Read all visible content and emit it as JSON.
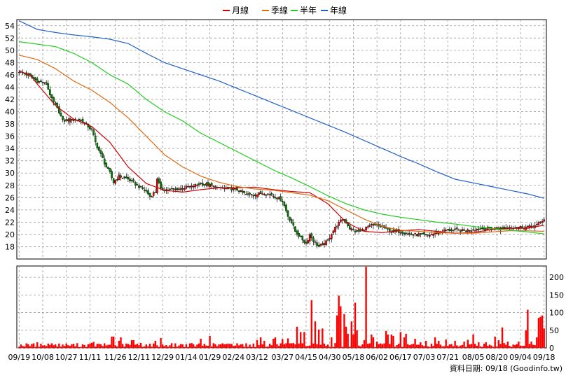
{
  "chart_data": [
    {
      "type": "candlestick",
      "panel": "price",
      "legend": [
        {
          "label": "月線",
          "color": "#cc0000"
        },
        {
          "label": "季線",
          "color": "#e06a10"
        },
        {
          "label": "半年",
          "color": "#22cc22"
        },
        {
          "label": "年線",
          "color": "#1f5fc8"
        }
      ],
      "y_ticks": [
        18,
        20,
        22,
        24,
        26,
        28,
        30,
        32,
        34,
        36,
        38,
        40,
        42,
        44,
        46,
        48,
        50,
        52,
        54
      ],
      "ylim": [
        16,
        55
      ],
      "grid": true,
      "candle_colors": {
        "up": "#ff0000",
        "down": "#008800"
      },
      "series_anchors": {
        "月線": [
          [
            0,
            46.6
          ],
          [
            6,
            46.0
          ],
          [
            10,
            44.5
          ],
          [
            20,
            41.0
          ],
          [
            30,
            38.8
          ],
          [
            40,
            37.6
          ],
          [
            50,
            35.0
          ],
          [
            60,
            31.0
          ],
          [
            70,
            28.3
          ],
          [
            80,
            27.2
          ],
          [
            90,
            26.9
          ],
          [
            100,
            27.3
          ],
          [
            110,
            27.6
          ],
          [
            120,
            27.6
          ],
          [
            130,
            27.7
          ],
          [
            140,
            27.3
          ],
          [
            150,
            27.0
          ],
          [
            160,
            26.8
          ],
          [
            170,
            25.0
          ],
          [
            180,
            22.0
          ],
          [
            190,
            20.5
          ],
          [
            200,
            20.3
          ],
          [
            210,
            20.6
          ],
          [
            220,
            20.8
          ],
          [
            230,
            20.5
          ],
          [
            240,
            20.2
          ],
          [
            250,
            20.3
          ],
          [
            260,
            20.8
          ],
          [
            270,
            21.0
          ],
          [
            280,
            21.0
          ],
          [
            289,
            21.5
          ]
        ],
        "季線": [
          [
            0,
            49.2
          ],
          [
            10,
            48.5
          ],
          [
            20,
            47.0
          ],
          [
            30,
            45.0
          ],
          [
            40,
            43.5
          ],
          [
            50,
            41.5
          ],
          [
            60,
            39.0
          ],
          [
            70,
            36.0
          ],
          [
            80,
            33.0
          ],
          [
            90,
            31.0
          ],
          [
            100,
            29.5
          ],
          [
            110,
            28.5
          ],
          [
            120,
            27.8
          ],
          [
            130,
            27.4
          ],
          [
            140,
            27.2
          ],
          [
            150,
            26.8
          ],
          [
            160,
            26.4
          ],
          [
            170,
            25.5
          ],
          [
            180,
            24.0
          ],
          [
            190,
            22.5
          ],
          [
            200,
            21.3
          ],
          [
            210,
            20.7
          ],
          [
            220,
            20.5
          ],
          [
            230,
            20.3
          ],
          [
            240,
            20.2
          ],
          [
            250,
            20.2
          ],
          [
            260,
            20.4
          ],
          [
            270,
            20.6
          ],
          [
            280,
            20.6
          ],
          [
            289,
            20.5
          ]
        ],
        "半年": [
          [
            0,
            51.4
          ],
          [
            10,
            51.0
          ],
          [
            20,
            50.6
          ],
          [
            30,
            49.5
          ],
          [
            40,
            48.0
          ],
          [
            50,
            46.0
          ],
          [
            60,
            44.5
          ],
          [
            70,
            42.0
          ],
          [
            80,
            40.0
          ],
          [
            90,
            38.5
          ],
          [
            100,
            36.5
          ],
          [
            110,
            35.0
          ],
          [
            120,
            33.5
          ],
          [
            130,
            32.0
          ],
          [
            140,
            30.5
          ],
          [
            150,
            29.2
          ],
          [
            160,
            27.8
          ],
          [
            170,
            26.3
          ],
          [
            180,
            25.0
          ],
          [
            190,
            24.0
          ],
          [
            200,
            23.3
          ],
          [
            210,
            22.8
          ],
          [
            220,
            22.4
          ],
          [
            230,
            22.0
          ],
          [
            240,
            21.7
          ],
          [
            250,
            21.3
          ],
          [
            260,
            21.0
          ],
          [
            270,
            20.7
          ],
          [
            280,
            20.4
          ],
          [
            289,
            20.1
          ]
        ],
        "年線": [
          [
            0,
            54.8
          ],
          [
            10,
            53.4
          ],
          [
            20,
            52.9
          ],
          [
            30,
            52.5
          ],
          [
            40,
            52.2
          ],
          [
            50,
            51.8
          ],
          [
            60,
            51.1
          ],
          [
            70,
            49.5
          ],
          [
            80,
            48.0
          ],
          [
            90,
            47.0
          ],
          [
            100,
            46.0
          ],
          [
            110,
            45.0
          ],
          [
            120,
            43.8
          ],
          [
            130,
            42.6
          ],
          [
            140,
            41.4
          ],
          [
            150,
            40.2
          ],
          [
            160,
            39.0
          ],
          [
            170,
            37.8
          ],
          [
            180,
            36.6
          ],
          [
            190,
            35.3
          ],
          [
            200,
            34.0
          ],
          [
            210,
            32.7
          ],
          [
            220,
            31.5
          ],
          [
            230,
            30.2
          ],
          [
            240,
            29.0
          ],
          [
            250,
            28.4
          ],
          [
            260,
            27.8
          ],
          [
            270,
            27.2
          ],
          [
            280,
            26.6
          ],
          [
            289,
            25.9
          ]
        ]
      },
      "close_anchors": [
        [
          0,
          46.5
        ],
        [
          5,
          46.0
        ],
        [
          10,
          45.0
        ],
        [
          15,
          44.5
        ],
        [
          18,
          42.0
        ],
        [
          22,
          40.0
        ],
        [
          24,
          38.5
        ],
        [
          30,
          38.8
        ],
        [
          35,
          38.5
        ],
        [
          40,
          37.0
        ],
        [
          42,
          35.0
        ],
        [
          45,
          33.0
        ],
        [
          48,
          31.0
        ],
        [
          50,
          30.0
        ],
        [
          52,
          28.5
        ],
        [
          55,
          29.5
        ],
        [
          60,
          29.0
        ],
        [
          65,
          28.0
        ],
        [
          70,
          27.0
        ],
        [
          72,
          26.2
        ],
        [
          75,
          27.0
        ],
        [
          76,
          29.2
        ],
        [
          78,
          27.3
        ],
        [
          85,
          27.3
        ],
        [
          95,
          27.8
        ],
        [
          100,
          28.3
        ],
        [
          105,
          28.0
        ],
        [
          110,
          27.5
        ],
        [
          115,
          27.5
        ],
        [
          120,
          27.3
        ],
        [
          125,
          26.5
        ],
        [
          130,
          26.5
        ],
        [
          135,
          26.8
        ],
        [
          140,
          26.3
        ],
        [
          145,
          25.5
        ],
        [
          148,
          23.0
        ],
        [
          150,
          22.0
        ],
        [
          152,
          20.5
        ],
        [
          155,
          19.5
        ],
        [
          158,
          18.5
        ],
        [
          160,
          20.0
        ],
        [
          162,
          19.0
        ],
        [
          165,
          18.0
        ],
        [
          168,
          18.5
        ],
        [
          170,
          19.0
        ],
        [
          172,
          20.2
        ],
        [
          175,
          21.5
        ],
        [
          178,
          22.5
        ],
        [
          180,
          22.0
        ],
        [
          182,
          21.0
        ],
        [
          185,
          20.5
        ],
        [
          188,
          20.5
        ],
        [
          190,
          21.0
        ],
        [
          195,
          21.5
        ],
        [
          200,
          21.2
        ],
        [
          205,
          20.5
        ],
        [
          210,
          20.5
        ],
        [
          215,
          20.0
        ],
        [
          220,
          20.0
        ],
        [
          225,
          19.8
        ],
        [
          230,
          20.3
        ],
        [
          235,
          20.7
        ],
        [
          240,
          20.7
        ],
        [
          245,
          20.6
        ],
        [
          250,
          20.8
        ],
        [
          255,
          21.0
        ],
        [
          260,
          21.0
        ],
        [
          265,
          21.0
        ],
        [
          270,
          21.2
        ],
        [
          275,
          21.2
        ],
        [
          280,
          21.2
        ],
        [
          285,
          21.5
        ],
        [
          289,
          22.5
        ]
      ],
      "n_days": 290
    },
    {
      "type": "bar",
      "panel": "volume",
      "y_ticks": [
        0,
        50,
        100,
        150,
        200
      ],
      "ylim": [
        0,
        232
      ],
      "bar_color": "#ff0000",
      "x_tick_labels": [
        "09/19",
        "10/08",
        "10/27",
        "11/11",
        "11/26",
        "12/11",
        "12/29",
        "01/14",
        "01/29",
        "02/24",
        "03/12",
        "03/27",
        "04/15",
        "04/30",
        "05/18",
        "06/02",
        "06/17",
        "07/03",
        "07/21",
        "08/05",
        "08/20",
        "09/04",
        "09/18"
      ],
      "spikes": [
        [
          10,
          16
        ],
        [
          18,
          13
        ],
        [
          40,
          14
        ],
        [
          41,
          17
        ],
        [
          51,
          32
        ],
        [
          52,
          32
        ],
        [
          55,
          20
        ],
        [
          56,
          30
        ],
        [
          62,
          22
        ],
        [
          63,
          22
        ],
        [
          67,
          14
        ],
        [
          75,
          20
        ],
        [
          78,
          28
        ],
        [
          100,
          26
        ],
        [
          105,
          34
        ],
        [
          112,
          13
        ],
        [
          120,
          13
        ],
        [
          125,
          13
        ],
        [
          131,
          22
        ],
        [
          133,
          30
        ],
        [
          135,
          20
        ],
        [
          140,
          26
        ],
        [
          141,
          30
        ],
        [
          145,
          25
        ],
        [
          148,
          27
        ],
        [
          153,
          60
        ],
        [
          155,
          45
        ],
        [
          157,
          45
        ],
        [
          161,
          135
        ],
        [
          163,
          75
        ],
        [
          165,
          52
        ],
        [
          167,
          55
        ],
        [
          172,
          30
        ],
        [
          175,
          92
        ],
        [
          176,
          148
        ],
        [
          177,
          118
        ],
        [
          179,
          96
        ],
        [
          180,
          60
        ],
        [
          181,
          40
        ],
        [
          183,
          75
        ],
        [
          184,
          38
        ],
        [
          185,
          128
        ],
        [
          186,
          50
        ],
        [
          190,
          22
        ],
        [
          191,
          230
        ],
        [
          194,
          38
        ],
        [
          195,
          30
        ],
        [
          197,
          18
        ],
        [
          202,
          48
        ],
        [
          203,
          38
        ],
        [
          205,
          38
        ],
        [
          206,
          34
        ],
        [
          210,
          45
        ],
        [
          212,
          30
        ],
        [
          213,
          40
        ],
        [
          218,
          26
        ],
        [
          221,
          16
        ],
        [
          224,
          20
        ],
        [
          229,
          30
        ],
        [
          231,
          20
        ],
        [
          235,
          24
        ],
        [
          240,
          20
        ],
        [
          245,
          18
        ],
        [
          247,
          23
        ],
        [
          250,
          38
        ],
        [
          253,
          16
        ],
        [
          257,
          16
        ],
        [
          262,
          32
        ],
        [
          264,
          22
        ],
        [
          266,
          58
        ],
        [
          269,
          18
        ],
        [
          275,
          18
        ],
        [
          279,
          50
        ],
        [
          280,
          108
        ],
        [
          282,
          18
        ],
        [
          285,
          30
        ],
        [
          286,
          85
        ],
        [
          287,
          88
        ],
        [
          288,
          92
        ],
        [
          289,
          55
        ]
      ],
      "base_level": 8
    }
  ],
  "legend_items": [
    {
      "label": "月線",
      "color": "#cc0000"
    },
    {
      "label": "季線",
      "color": "#e06a10"
    },
    {
      "label": "半年",
      "color": "#22cc22"
    },
    {
      "label": "年線",
      "color": "#1f5fc8"
    }
  ],
  "credit": "資料日期: 09/18 (Goodinfo.tw)"
}
